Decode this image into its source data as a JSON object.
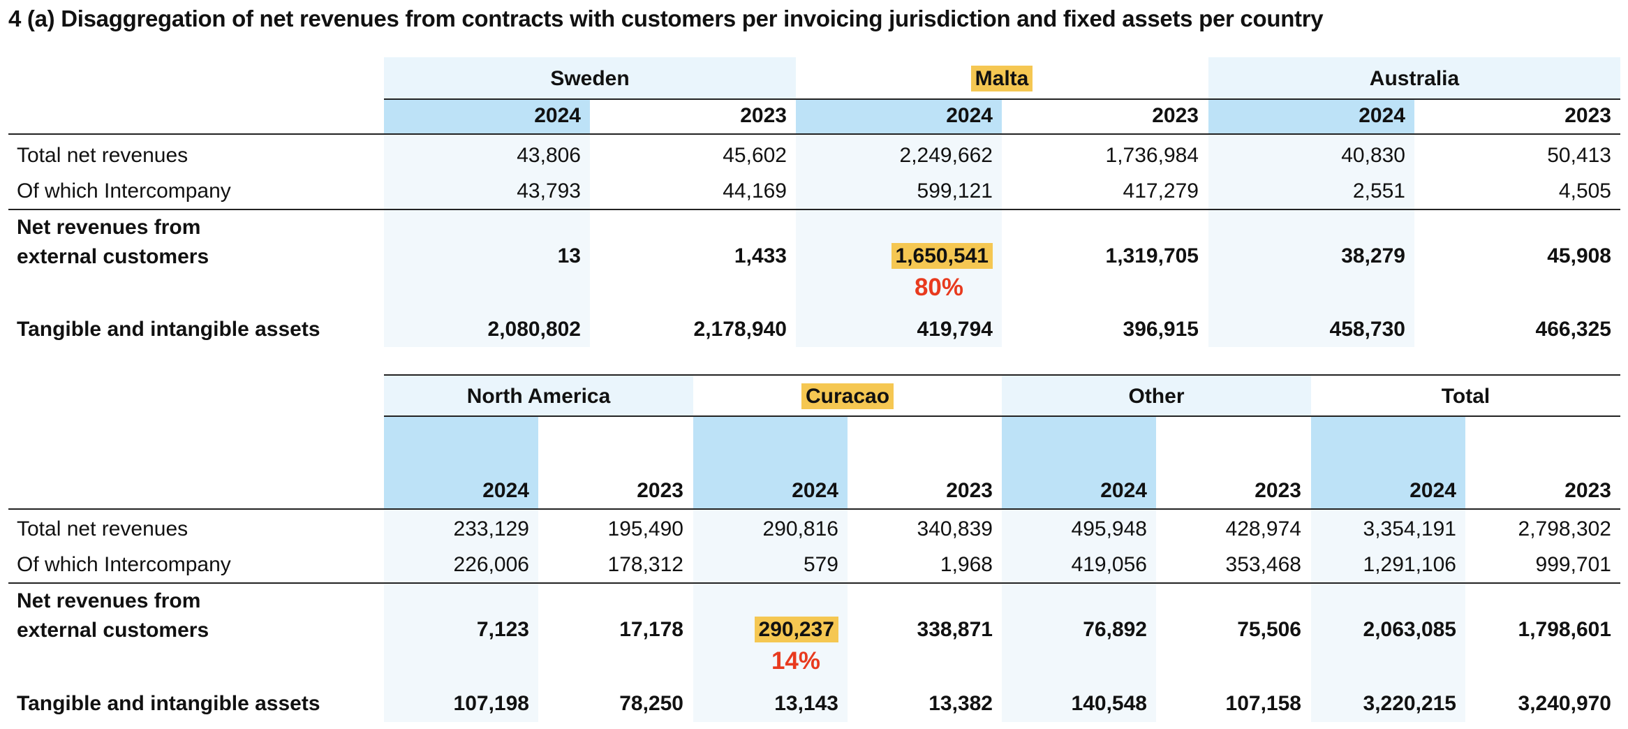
{
  "title": "4 (a) Disaggregation of net revenues from contracts with customers per invoicing jurisdiction and fixed assets per country",
  "highlight_color": "#f5c752",
  "accent_color": "#e83a1e",
  "table1": {
    "regions": [
      "Sweden",
      "Malta",
      "Australia"
    ],
    "years": [
      "2024",
      "2023",
      "2024",
      "2023",
      "2024",
      "2023"
    ],
    "rows": [
      {
        "label": "Total net revenues",
        "values": [
          "43,806",
          "45,602",
          "2,249,662",
          "1,736,984",
          "40,830",
          "50,413"
        ]
      },
      {
        "label": "Of which Intercompany",
        "values": [
          "43,793",
          "44,169",
          "599,121",
          "417,279",
          "2,551",
          "4,505"
        ]
      },
      {
        "label_line1": "Net revenues from",
        "label_line2": "external customers",
        "values": [
          "13",
          "1,433",
          "1,650,541",
          "1,319,705",
          "38,279",
          "45,908"
        ],
        "share": "80%"
      },
      {
        "label": "Tangible and intangible assets",
        "values": [
          "2,080,802",
          "2,178,940",
          "419,794",
          "396,915",
          "458,730",
          "466,325"
        ]
      }
    ]
  },
  "table2": {
    "regions": [
      "North America",
      "Curacao",
      "Other",
      "Total"
    ],
    "years": [
      "2024",
      "2023",
      "2024",
      "2023",
      "2024",
      "2023",
      "2024",
      "2023"
    ],
    "rows": [
      {
        "label": "Total net revenues",
        "values": [
          "233,129",
          "195,490",
          "290,816",
          "340,839",
          "495,948",
          "428,974",
          "3,354,191",
          "2,798,302"
        ]
      },
      {
        "label": "Of which Intercompany",
        "values": [
          "226,006",
          "178,312",
          "579",
          "1,968",
          "419,056",
          "353,468",
          "1,291,106",
          "999,701"
        ]
      },
      {
        "label_line1": "Net revenues from",
        "label_line2": "external customers",
        "values": [
          "7,123",
          "17,178",
          "290,237",
          "338,871",
          "76,892",
          "75,506",
          "2,063,085",
          "1,798,601"
        ],
        "share": "14%"
      },
      {
        "label": "Tangible and intangible assets",
        "values": [
          "107,198",
          "78,250",
          "13,143",
          "13,382",
          "140,548",
          "107,158",
          "3,220,215",
          "3,240,970"
        ]
      }
    ]
  }
}
